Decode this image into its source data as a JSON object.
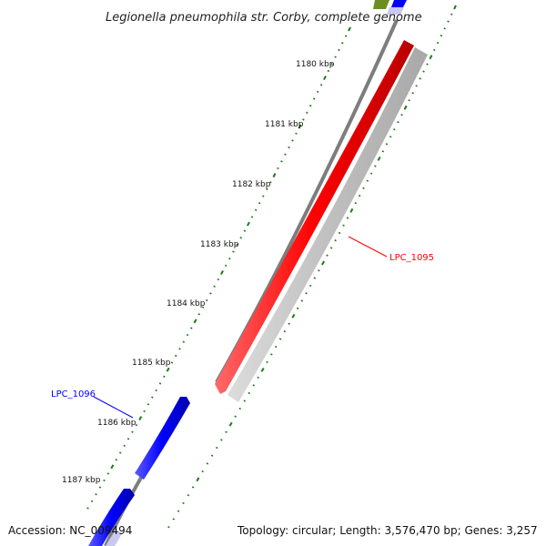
{
  "title": "Legionella pneumophila str. Corby, complete genome",
  "accession": "Accession: NC_009494",
  "topology": "Topology: circular; Length: 3,576,470 bp; Genes: 3,257",
  "ruler_labels": [
    "1180 kbp",
    "1181 kbp",
    "1182 kbp",
    "1183 kbp",
    "1184 kbp",
    "1185 kbp",
    "1186 kbp",
    "1187 kbp"
  ],
  "genes": [
    {
      "name": "LPC_1095",
      "color": "#ff0000",
      "strand": "reverse"
    },
    {
      "name": "LPC_1096",
      "color": "#0000ff",
      "strand": "forward"
    }
  ],
  "colors": {
    "backbone": "#808080",
    "forward_gene": "#0000ff",
    "reverse_gene": "#ff0000",
    "shadow": "#c0c0c0",
    "tick": "#1a7a1a",
    "olive": "#6b8e23"
  }
}
